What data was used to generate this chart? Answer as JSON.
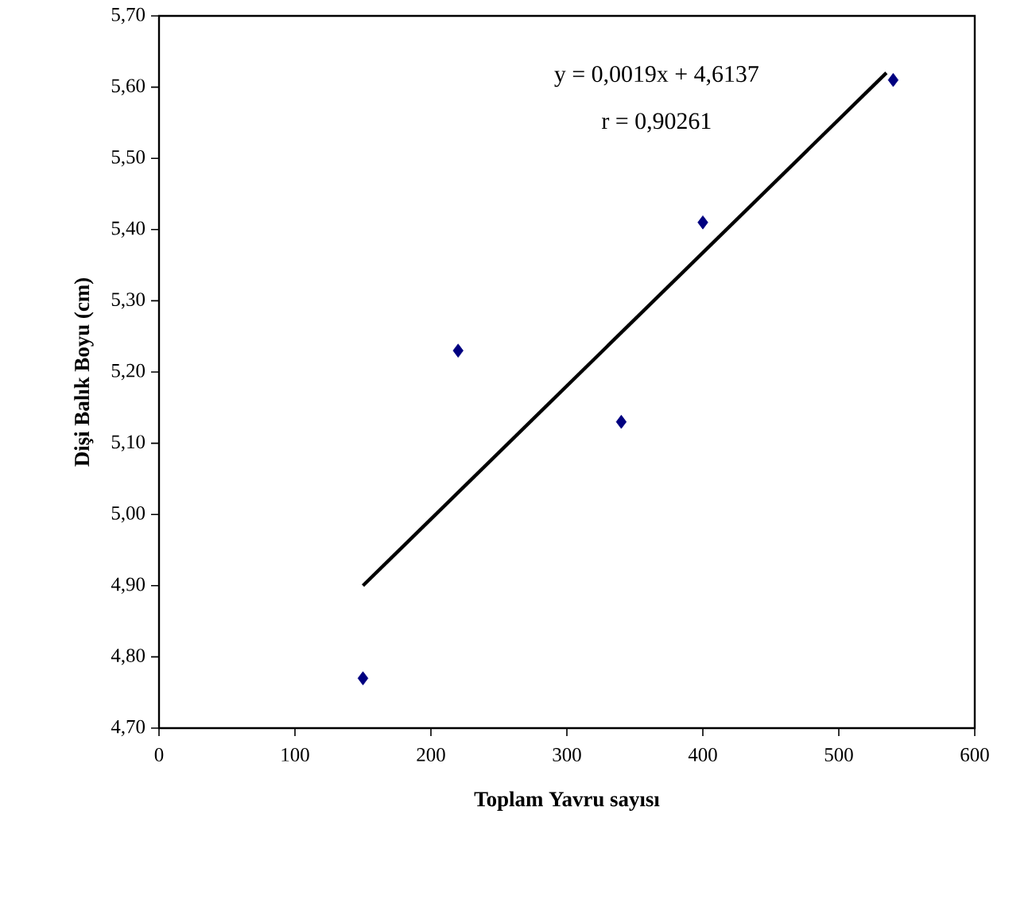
{
  "chart_data": {
    "type": "scatter",
    "xlabel": "Toplam Yavru sayısı",
    "ylabel": "Dişi Balık Boyu (cm)",
    "annotations": [
      "y = 0,0019x + 4,6137",
      "r = 0,90261"
    ],
    "series": [
      {
        "color": "#000080",
        "marker": "diamond",
        "x": [
          150,
          220,
          340,
          400,
          540
        ],
        "values": [
          4.77,
          5.23,
          5.13,
          5.41,
          5.61
        ]
      },
      {
        "type": "line",
        "color": "#000000",
        "marker": "none",
        "line_style": "solid",
        "x": [
          150,
          535
        ],
        "values": [
          4.9,
          5.62
        ]
      }
    ],
    "xlim": [
      0,
      600
    ],
    "ylim": [
      4.7,
      5.7
    ],
    "xticks": [
      0,
      100,
      200,
      300,
      400,
      500,
      600
    ],
    "yticks": [
      {
        "value": 4.7,
        "label": "4,70"
      },
      {
        "value": 4.8,
        "label": "4,80"
      },
      {
        "value": 4.9,
        "label": "4,90"
      },
      {
        "value": 5.0,
        "label": "5,00"
      },
      {
        "value": 5.1,
        "label": "5,10"
      },
      {
        "value": 5.2,
        "label": "5,20"
      },
      {
        "value": 5.3,
        "label": "5,30"
      },
      {
        "value": 5.4,
        "label": "5,40"
      },
      {
        "value": 5.5,
        "label": "5,50"
      },
      {
        "value": 5.6,
        "label": "5,60"
      },
      {
        "value": 5.7,
        "label": "5,70"
      }
    ],
    "grid": false
  }
}
